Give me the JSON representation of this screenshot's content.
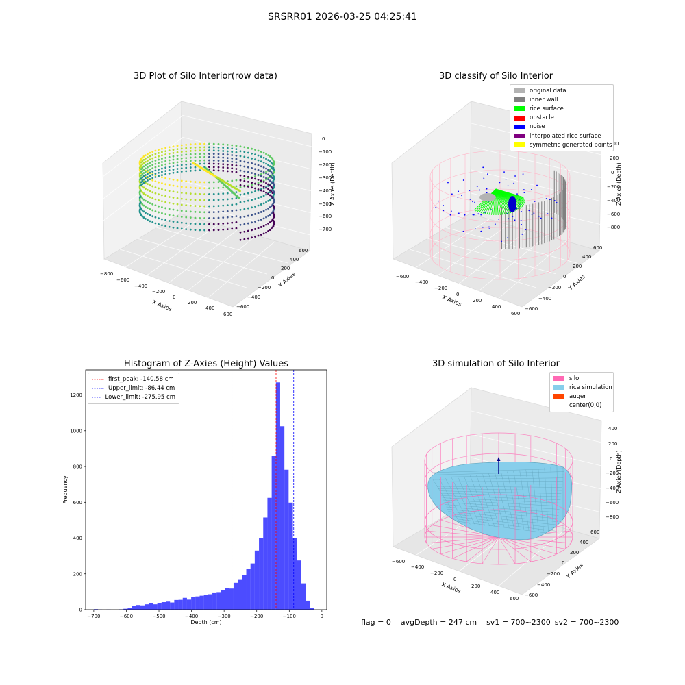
{
  "suptitle": "SRSRR01 2026-03-25 04:25:41",
  "panels": {
    "raw": {
      "title": "3D Plot of Silo Interior(row data)",
      "xlabel": "X Axies",
      "ylabel": "Y Axies",
      "zlabel": "Z Axies (Depth)",
      "xticks": [
        "−800",
        "−600",
        "−400",
        "−200",
        "0",
        "200",
        "400",
        "600"
      ],
      "yticks": [
        "−600",
        "−400",
        "−200",
        "0",
        "200",
        "400",
        "600"
      ],
      "zticks": [
        "0",
        "−100",
        "−200",
        "−300",
        "−400",
        "−500",
        "−600",
        "−700"
      ]
    },
    "classify": {
      "title": "3D classify of Silo Interior",
      "xlabel": "X Axies",
      "ylabel": "Y Axies",
      "zlabel": "Z Axies (Depth)",
      "xticks": [
        "−600",
        "−400",
        "−200",
        "0",
        "200",
        "400",
        "600"
      ],
      "yticks": [
        "−600",
        "−400",
        "−200",
        "0",
        "200",
        "400",
        "600"
      ],
      "zticks": [
        "400",
        "200",
        "0",
        "−200",
        "−400",
        "−600",
        "−800"
      ],
      "legend": [
        {
          "label": "original data",
          "color": "#b3b3b3"
        },
        {
          "label": "inner wall",
          "color": "#808080"
        },
        {
          "label": "rice surface",
          "color": "#00ff00"
        },
        {
          "label": "obstacle",
          "color": "#ff0000"
        },
        {
          "label": "noise",
          "color": "#0000ff"
        },
        {
          "label": "interpolated rice surface",
          "color": "#800080"
        },
        {
          "label": "symmetric generated points",
          "color": "#ffff00"
        }
      ]
    },
    "simulation": {
      "title": "3D simulation of Silo Interior",
      "xlabel": "X Axies",
      "ylabel": "Y Axies",
      "zlabel": "Z Axies (Depth)",
      "xticks": [
        "−600",
        "−400",
        "−200",
        "0",
        "200",
        "400",
        "600"
      ],
      "yticks": [
        "−600",
        "−400",
        "−200",
        "0",
        "200",
        "400",
        "600"
      ],
      "zticks": [
        "400",
        "200",
        "0",
        "−200",
        "−400",
        "−600",
        "−800"
      ],
      "legend": [
        {
          "label": "silo",
          "color": "#ff69b4"
        },
        {
          "label": "rice simulation",
          "color": "#87ceeb"
        },
        {
          "label": "auger",
          "color": "#ff4500"
        },
        {
          "label": "center(0,0)",
          "color": "#ffffff"
        }
      ]
    }
  },
  "chart_data": {
    "type": "bar",
    "title": "Histogram of Z-Axies (Height) Values",
    "xlabel": "Depth (cm)",
    "ylabel": "Frequency",
    "xlim": [
      -725,
      15
    ],
    "ylim": [
      0,
      1340
    ],
    "xticks": [
      -700,
      -600,
      -500,
      -400,
      -300,
      -200,
      -100,
      0
    ],
    "yticks": [
      0,
      200,
      400,
      600,
      800,
      1000,
      1200
    ],
    "bar_color": "#0000ff",
    "bin_width": 13,
    "bins": [
      {
        "x0": -700,
        "v": 3
      },
      {
        "x0": -687,
        "v": 1
      },
      {
        "x0": -674,
        "v": 0
      },
      {
        "x0": -661,
        "v": 1
      },
      {
        "x0": -648,
        "v": 0
      },
      {
        "x0": -635,
        "v": 0
      },
      {
        "x0": -622,
        "v": 2
      },
      {
        "x0": -609,
        "v": 5
      },
      {
        "x0": -596,
        "v": 8
      },
      {
        "x0": -583,
        "v": 22
      },
      {
        "x0": -570,
        "v": 26
      },
      {
        "x0": -557,
        "v": 24
      },
      {
        "x0": -544,
        "v": 30
      },
      {
        "x0": -531,
        "v": 36
      },
      {
        "x0": -518,
        "v": 30
      },
      {
        "x0": -505,
        "v": 38
      },
      {
        "x0": -492,
        "v": 42
      },
      {
        "x0": -479,
        "v": 45
      },
      {
        "x0": -466,
        "v": 40
      },
      {
        "x0": -453,
        "v": 54
      },
      {
        "x0": -440,
        "v": 55
      },
      {
        "x0": -427,
        "v": 66
      },
      {
        "x0": -414,
        "v": 56
      },
      {
        "x0": -401,
        "v": 70
      },
      {
        "x0": -388,
        "v": 74
      },
      {
        "x0": -375,
        "v": 78
      },
      {
        "x0": -362,
        "v": 82
      },
      {
        "x0": -349,
        "v": 86
      },
      {
        "x0": -336,
        "v": 96
      },
      {
        "x0": -323,
        "v": 98
      },
      {
        "x0": -310,
        "v": 110
      },
      {
        "x0": -297,
        "v": 120
      },
      {
        "x0": -284,
        "v": 118
      },
      {
        "x0": -271,
        "v": 150
      },
      {
        "x0": -258,
        "v": 170
      },
      {
        "x0": -245,
        "v": 195
      },
      {
        "x0": -232,
        "v": 228
      },
      {
        "x0": -219,
        "v": 258
      },
      {
        "x0": -206,
        "v": 330
      },
      {
        "x0": -193,
        "v": 400
      },
      {
        "x0": -180,
        "v": 515
      },
      {
        "x0": -167,
        "v": 625
      },
      {
        "x0": -154,
        "v": 860
      },
      {
        "x0": -141,
        "v": 1270
      },
      {
        "x0": -128,
        "v": 1025
      },
      {
        "x0": -115,
        "v": 782
      },
      {
        "x0": -102,
        "v": 598
      },
      {
        "x0": -89,
        "v": 402
      },
      {
        "x0": -76,
        "v": 275
      },
      {
        "x0": -63,
        "v": 147
      },
      {
        "x0": -50,
        "v": 50
      },
      {
        "x0": -37,
        "v": 10
      }
    ],
    "vlines": [
      {
        "label": "first_peak: -140.58 cm",
        "x": -140.58,
        "color": "#ff0000"
      },
      {
        "label": "Upper_limit: -86.44 cm",
        "x": -86.44,
        "color": "#0000ff"
      },
      {
        "label": "Lower_limit: -275.95 cm",
        "x": -275.95,
        "color": "#0000ff"
      }
    ]
  },
  "status": {
    "flag": "flag = 0",
    "avg_depth": "avgDepth = 247 cm",
    "sv1": "sv1 = 700~2300",
    "sv2": "sv2 = 700~2300"
  }
}
